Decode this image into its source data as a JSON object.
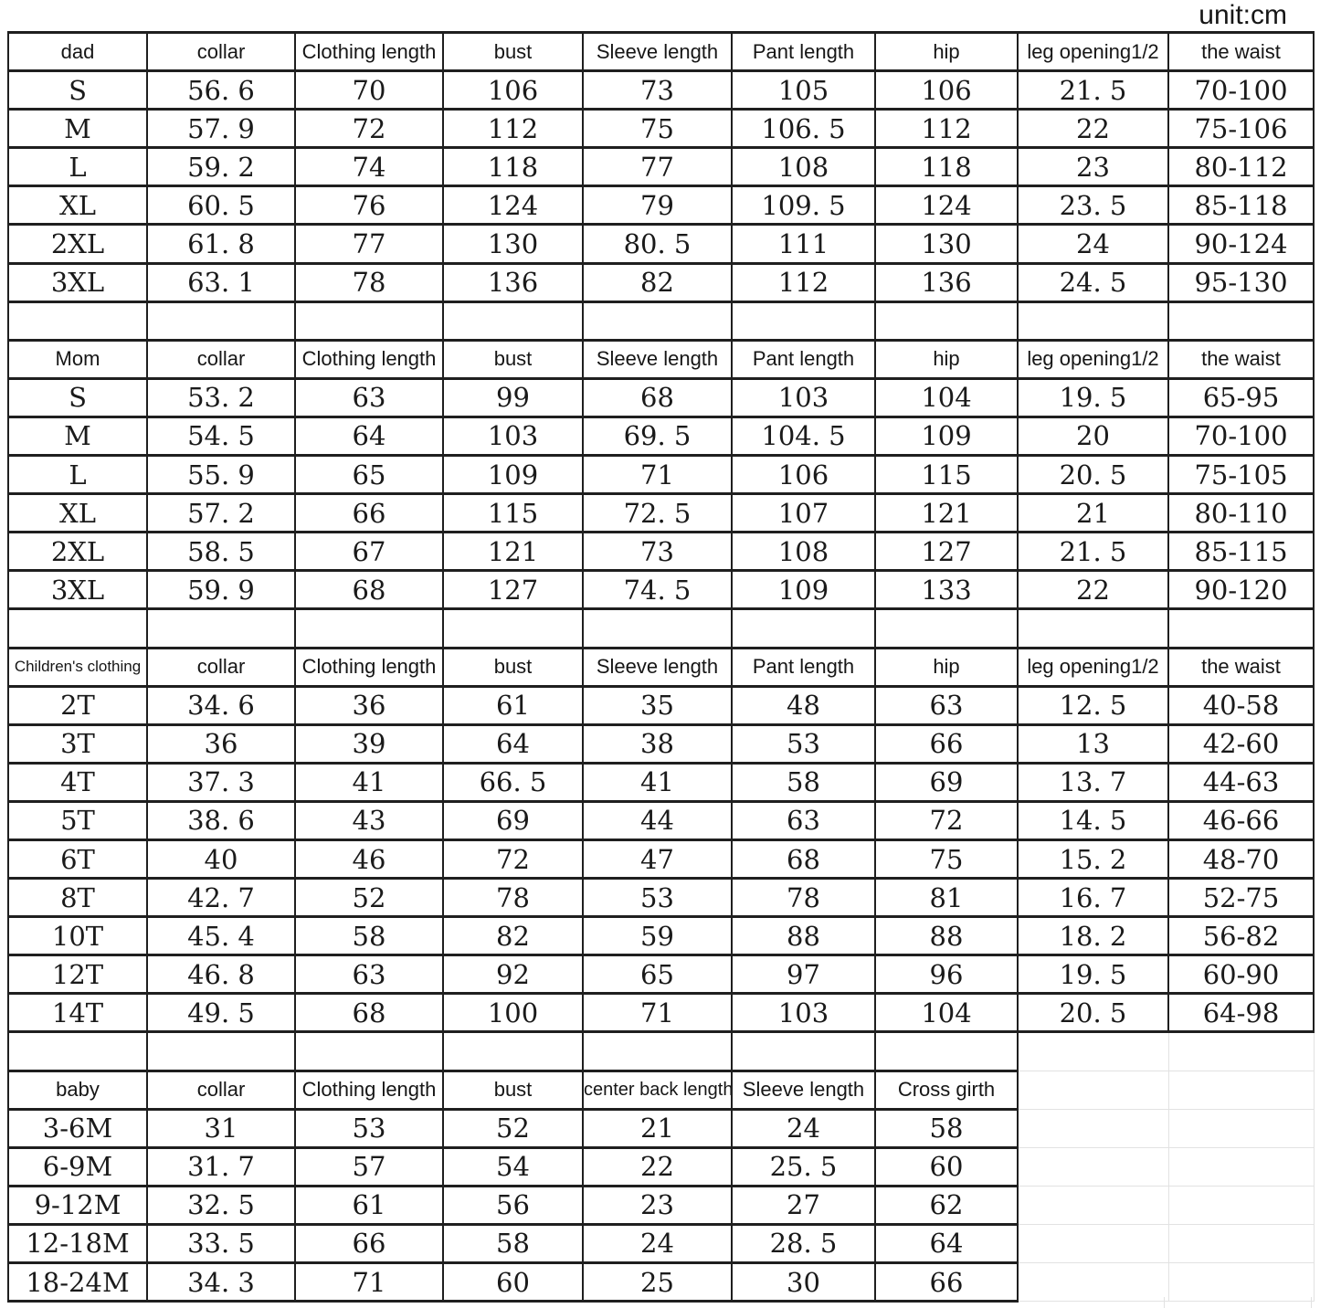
{
  "unit_label": "unit:cm",
  "colors": {
    "grid_line": "#1f1f1f",
    "faint_grid_line": "#e2e2e2",
    "text": "#1a1a1a",
    "background": "#ffffff"
  },
  "sections": [
    {
      "id": "dad",
      "columns": [
        "dad",
        "collar",
        "Clothing length",
        "bust",
        "Sleeve length",
        "Pant length",
        "hip",
        "leg opening1/2",
        "the waist"
      ],
      "rows": [
        [
          "S",
          "56. 6",
          "70",
          "106",
          "73",
          "105",
          "106",
          "21. 5",
          "70-100"
        ],
        [
          "M",
          "57. 9",
          "72",
          "112",
          "75",
          "106. 5",
          "112",
          "22",
          "75-106"
        ],
        [
          "L",
          "59. 2",
          "74",
          "118",
          "77",
          "108",
          "118",
          "23",
          "80-112"
        ],
        [
          "XL",
          "60. 5",
          "76",
          "124",
          "79",
          "109. 5",
          "124",
          "23. 5",
          "85-118"
        ],
        [
          "2XL",
          "61. 8",
          "77",
          "130",
          "80. 5",
          "111",
          "130",
          "24",
          "90-124"
        ],
        [
          "3XL",
          "63. 1",
          "78",
          "136",
          "82",
          "112",
          "136",
          "24. 5",
          "95-130"
        ]
      ]
    },
    {
      "id": "mom",
      "columns": [
        "Mom",
        "collar",
        "Clothing length",
        "bust",
        "Sleeve length",
        "Pant length",
        "hip",
        "leg opening1/2",
        "the waist"
      ],
      "rows": [
        [
          "S",
          "53. 2",
          "63",
          "99",
          "68",
          "103",
          "104",
          "19. 5",
          "65-95"
        ],
        [
          "M",
          "54. 5",
          "64",
          "103",
          "69. 5",
          "104. 5",
          "109",
          "20",
          "70-100"
        ],
        [
          "L",
          "55. 9",
          "65",
          "109",
          "71",
          "106",
          "115",
          "20. 5",
          "75-105"
        ],
        [
          "XL",
          "57. 2",
          "66",
          "115",
          "72. 5",
          "107",
          "121",
          "21",
          "80-110"
        ],
        [
          "2XL",
          "58. 5",
          "67",
          "121",
          "73",
          "108",
          "127",
          "21. 5",
          "85-115"
        ],
        [
          "3XL",
          "59. 9",
          "68",
          "127",
          "74. 5",
          "109",
          "133",
          "22",
          "90-120"
        ]
      ]
    },
    {
      "id": "children",
      "columns": [
        "Children's clothing",
        "collar",
        "Clothing length",
        "bust",
        "Sleeve length",
        "Pant length",
        "hip",
        "leg opening1/2",
        "the waist"
      ],
      "rows": [
        [
          "2T",
          "34. 6",
          "36",
          "61",
          "35",
          "48",
          "63",
          "12. 5",
          "40-58"
        ],
        [
          "3T",
          "36",
          "39",
          "64",
          "38",
          "53",
          "66",
          "13",
          "42-60"
        ],
        [
          "4T",
          "37. 3",
          "41",
          "66. 5",
          "41",
          "58",
          "69",
          "13. 7",
          "44-63"
        ],
        [
          "5T",
          "38. 6",
          "43",
          "69",
          "44",
          "63",
          "72",
          "14. 5",
          "46-66"
        ],
        [
          "6T",
          "40",
          "46",
          "72",
          "47",
          "68",
          "75",
          "15. 2",
          "48-70"
        ],
        [
          "8T",
          "42. 7",
          "52",
          "78",
          "53",
          "78",
          "81",
          "16. 7",
          "52-75"
        ],
        [
          "10T",
          "45. 4",
          "58",
          "82",
          "59",
          "88",
          "88",
          "18. 2",
          "56-82"
        ],
        [
          "12T",
          "46. 8",
          "63",
          "92",
          "65",
          "97",
          "96",
          "19. 5",
          "60-90"
        ],
        [
          "14T",
          "49. 5",
          "68",
          "100",
          "71",
          "103",
          "104",
          "20. 5",
          "64-98"
        ]
      ]
    },
    {
      "id": "baby",
      "columns": [
        "baby",
        "collar",
        "Clothing length",
        "bust",
        "center back length",
        "Sleeve length",
        "Cross girth"
      ],
      "rows": [
        [
          "3-6M",
          "31",
          "53",
          "52",
          "21",
          "24",
          "58"
        ],
        [
          "6-9M",
          "31. 7",
          "57",
          "54",
          "22",
          "25. 5",
          "60"
        ],
        [
          "9-12M",
          "32. 5",
          "61",
          "56",
          "23",
          "27",
          "62"
        ],
        [
          "12-18M",
          "33. 5",
          "66",
          "58",
          "24",
          "28. 5",
          "64"
        ],
        [
          "18-24M",
          "34. 3",
          "71",
          "60",
          "25",
          "30",
          "66"
        ]
      ]
    }
  ]
}
